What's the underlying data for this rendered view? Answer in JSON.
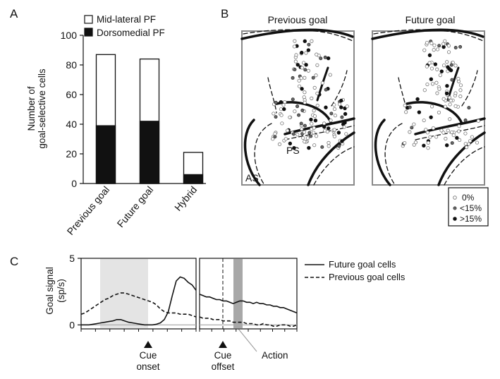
{
  "panels": {
    "a": "A",
    "b": "B",
    "c": "C"
  },
  "chart_data": [
    {
      "panel": "A",
      "type": "bar",
      "stacked": true,
      "categories": [
        "Previous goal",
        "Future goal",
        "Hybrid"
      ],
      "series": [
        {
          "name": "Dorsomedial PF",
          "values": [
            39,
            42,
            6
          ],
          "color": "#111111"
        },
        {
          "name": "Mid-lateral PF",
          "values": [
            48,
            42,
            15
          ],
          "color": "#ffffff"
        }
      ],
      "ylabel_lines": [
        "Number of",
        "goal-selective cells"
      ],
      "ylim": [
        0,
        100
      ],
      "yticks": [
        0,
        20,
        40,
        60,
        80,
        100
      ],
      "legend": "top"
    },
    {
      "panel": "B",
      "type": "scatter",
      "maps": [
        {
          "title": "Previous goal",
          "labels": [
            "PS",
            "AS"
          ]
        },
        {
          "title": "Future goal"
        }
      ],
      "legend": {
        "entries": [
          "0%",
          "<15%",
          ">15%"
        ],
        "placement": "bottom-right"
      }
    },
    {
      "panel": "C",
      "type": "line",
      "ylabel_lines": [
        "Goal signal",
        "(sp/s)"
      ],
      "yticks": [
        0,
        5
      ],
      "ylim": [
        -0.3,
        5
      ],
      "series": [
        {
          "name": "Future goal cells",
          "style": "solid",
          "left": [
            0.0,
            0.0,
            0.0,
            0.05,
            0.1,
            0.15,
            0.2,
            0.25,
            0.3,
            0.4,
            0.4,
            0.3,
            0.2,
            0.15,
            0.1,
            0.05,
            0.0,
            0.0,
            0.0,
            0.05,
            0.15,
            0.4,
            1.0,
            2.2,
            3.3,
            3.6,
            3.5,
            3.2,
            3.0,
            2.6
          ],
          "right": [
            2.3,
            2.2,
            2.1,
            2.1,
            2.0,
            1.9,
            1.9,
            1.8,
            1.8,
            1.7,
            1.6,
            1.7,
            1.8,
            1.8,
            1.7,
            1.7,
            1.6,
            1.7,
            1.6,
            1.6,
            1.5,
            1.5,
            1.4,
            1.4,
            1.3,
            1.3,
            1.2,
            1.1,
            1.0,
            0.9
          ]
        },
        {
          "name": "Previous goal cells",
          "style": "dashed",
          "left": [
            0.8,
            0.9,
            1.1,
            1.3,
            1.5,
            1.7,
            1.9,
            2.0,
            2.2,
            2.3,
            2.4,
            2.4,
            2.3,
            2.2,
            2.1,
            2.0,
            1.9,
            1.8,
            1.7,
            1.5,
            1.2,
            1.0,
            0.9,
            0.9,
            0.9,
            0.8,
            0.8,
            0.8,
            0.7,
            0.6
          ],
          "right": [
            0.6,
            0.5,
            0.5,
            0.5,
            0.4,
            0.4,
            0.4,
            0.3,
            0.3,
            0.3,
            0.2,
            0.2,
            0.2,
            0.2,
            0.1,
            0.1,
            0.1,
            0.0,
            0.0,
            0.1,
            0.0,
            0.0,
            -0.1,
            -0.1,
            0.0,
            0.0,
            0.0,
            -0.1,
            -0.1,
            0.0
          ]
        }
      ],
      "events": [
        "Cue onset",
        "Cue offset",
        "Action"
      ],
      "event_label_lines": {
        "cue_onset": [
          "Cue",
          "onset"
        ],
        "cue_offset": [
          "Cue",
          "offset"
        ],
        "action": "Action"
      },
      "legend": "top-right"
    }
  ]
}
